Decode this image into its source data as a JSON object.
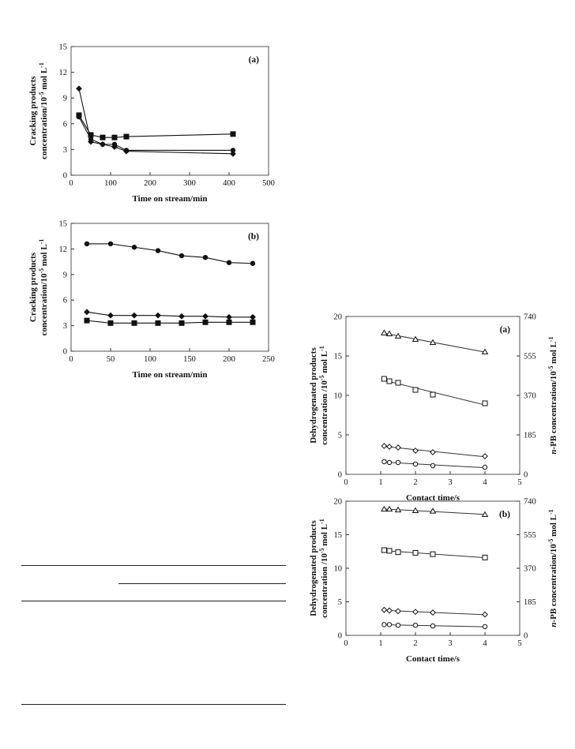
{
  "chart_data": [
    {
      "type": "line",
      "panel_label": "(a)",
      "xlabel": "Time on stream/min",
      "ylabel": "Cracking products",
      "ylabel2": "concentration/10^-5 mol L^-1",
      "xlim": [
        0,
        500
      ],
      "ylim": [
        0,
        15
      ],
      "xticks": [
        "0",
        "100",
        "200",
        "300",
        "400",
        "500"
      ],
      "yticks": [
        "0",
        "3",
        "6",
        "9",
        "12",
        "15"
      ],
      "grid": false,
      "series": [
        {
          "marker": "diamond",
          "x": [
            20,
            50,
            80,
            110,
            140,
            410
          ],
          "y": [
            10.1,
            3.9,
            3.6,
            3.3,
            2.8,
            2.5
          ]
        },
        {
          "marker": "square",
          "x": [
            20,
            50,
            80,
            110,
            140,
            410
          ],
          "y": [
            7.0,
            4.7,
            4.4,
            4.4,
            4.5,
            4.8
          ]
        },
        {
          "marker": "circle",
          "x": [
            20,
            50,
            80,
            110,
            140,
            410
          ],
          "y": [
            6.8,
            4.2,
            3.6,
            3.6,
            2.9,
            2.9
          ]
        }
      ]
    },
    {
      "type": "line",
      "panel_label": "(b)",
      "xlabel": "Time on stream/min",
      "ylabel": "Cracking products",
      "ylabel2": "concentration/10^-5 mol L^-1",
      "xlim": [
        0,
        250
      ],
      "ylim": [
        0,
        15
      ],
      "xticks": [
        "0",
        "50",
        "100",
        "150",
        "200",
        "250"
      ],
      "yticks": [
        "0",
        "3",
        "6",
        "9",
        "12",
        "15"
      ],
      "grid": false,
      "series": [
        {
          "marker": "circle",
          "x": [
            20,
            50,
            80,
            110,
            140,
            170,
            200,
            230
          ],
          "y": [
            12.6,
            12.6,
            12.2,
            11.8,
            11.2,
            11.0,
            10.4,
            10.3
          ]
        },
        {
          "marker": "diamond",
          "x": [
            20,
            50,
            80,
            110,
            140,
            170,
            200,
            230
          ],
          "y": [
            4.6,
            4.2,
            4.2,
            4.2,
            4.1,
            4.1,
            4.0,
            4.0
          ]
        },
        {
          "marker": "square",
          "x": [
            20,
            50,
            80,
            110,
            140,
            170,
            200,
            230
          ],
          "y": [
            3.6,
            3.3,
            3.3,
            3.3,
            3.3,
            3.4,
            3.4,
            3.4
          ]
        }
      ]
    },
    {
      "type": "line",
      "panel_label": "(a)",
      "xlabel": "Contact time/s",
      "ylabel": "Dehydrogenated products",
      "ylabel2": "concentration /10^-5 mol L^-1",
      "y2label": "n-PB concentration/10^-5 mol L^-1",
      "xlim": [
        0,
        5
      ],
      "ylim": [
        0,
        20
      ],
      "y2lim": [
        0,
        740
      ],
      "xticks": [
        "0",
        "1",
        "2",
        "3",
        "4",
        "5"
      ],
      "yticks": [
        "0",
        "5",
        "10",
        "15",
        "20"
      ],
      "y2ticks": [
        "0",
        "185",
        "370",
        "555",
        "740"
      ],
      "grid": false,
      "series": [
        {
          "marker": "triangle",
          "axis": "right",
          "x": [
            1.1,
            1.25,
            1.5,
            2.0,
            2.5,
            4.0
          ],
          "y": [
            663,
            659,
            648,
            633,
            618,
            574
          ]
        },
        {
          "marker": "square",
          "axis": "left",
          "x": [
            1.1,
            1.25,
            1.5,
            2.0,
            2.5,
            4.0
          ],
          "y": [
            12.1,
            11.8,
            11.6,
            10.7,
            10.1,
            9.0
          ]
        },
        {
          "marker": "diamond",
          "axis": "left",
          "x": [
            1.1,
            1.25,
            1.5,
            2.0,
            2.5,
            4.0
          ],
          "y": [
            3.6,
            3.5,
            3.4,
            3.0,
            2.8,
            2.3
          ]
        },
        {
          "marker": "circle",
          "axis": "left",
          "x": [
            1.1,
            1.25,
            1.5,
            2.0,
            2.5,
            4.0
          ],
          "y": [
            1.6,
            1.5,
            1.5,
            1.3,
            1.1,
            0.9
          ]
        }
      ]
    },
    {
      "type": "line",
      "panel_label": "(b)",
      "xlabel": "Contact time/s",
      "ylabel": "Dehydrogenated products",
      "ylabel2": "concentration /10^-5 mol L^-1",
      "y2label": "n-PB concentration/10^-5 mol L^-1",
      "xlim": [
        0,
        5
      ],
      "ylim": [
        0,
        20
      ],
      "y2lim": [
        0,
        740
      ],
      "xticks": [
        "0",
        "1",
        "2",
        "3",
        "4",
        "5"
      ],
      "yticks": [
        "0",
        "5",
        "10",
        "15",
        "20"
      ],
      "y2ticks": [
        "0",
        "185",
        "370",
        "555",
        "740"
      ],
      "grid": false,
      "series": [
        {
          "marker": "triangle",
          "axis": "right",
          "x": [
            1.1,
            1.25,
            1.5,
            2.0,
            2.5,
            4.0
          ],
          "y": [
            696,
            696,
            692,
            688,
            685,
            666
          ]
        },
        {
          "marker": "square",
          "axis": "left",
          "x": [
            1.1,
            1.25,
            1.5,
            2.0,
            2.5,
            4.0
          ],
          "y": [
            12.7,
            12.6,
            12.4,
            12.3,
            12.1,
            11.6
          ]
        },
        {
          "marker": "diamond",
          "axis": "left",
          "x": [
            1.1,
            1.25,
            1.5,
            2.0,
            2.5,
            4.0
          ],
          "y": [
            3.8,
            3.7,
            3.6,
            3.5,
            3.4,
            3.1
          ]
        },
        {
          "marker": "circle",
          "axis": "left",
          "x": [
            1.1,
            1.25,
            1.5,
            2.0,
            2.5,
            4.0
          ],
          "y": [
            1.6,
            1.6,
            1.5,
            1.5,
            1.4,
            1.3
          ]
        }
      ]
    }
  ]
}
